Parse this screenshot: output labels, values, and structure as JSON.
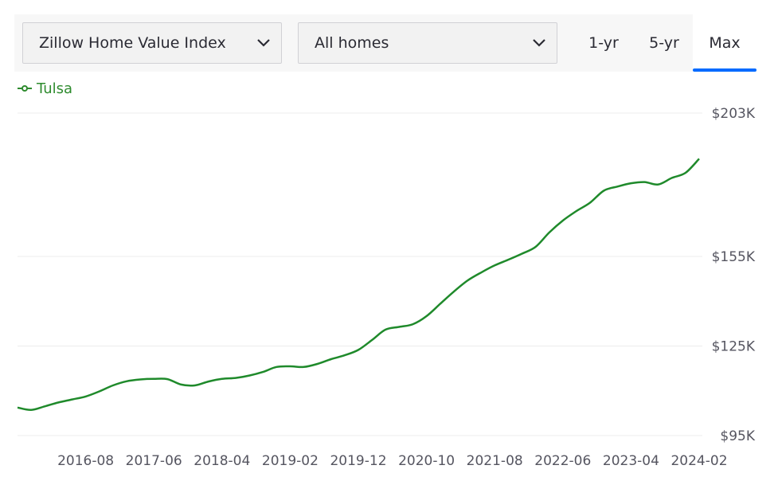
{
  "controls": {
    "metric_select": "Zillow Home Value Index",
    "home_type_select": "All homes",
    "tabs": [
      {
        "label": "1-yr",
        "active": false
      },
      {
        "label": "5-yr",
        "active": false
      },
      {
        "label": "Max",
        "active": true
      }
    ]
  },
  "colors": {
    "series": "#1f8a2b",
    "active_tab": "#006aff",
    "grid": "#ececec"
  },
  "chart_data": {
    "type": "line",
    "title": "",
    "xlabel": "",
    "ylabel": "",
    "legend_position": "top-left",
    "grid": true,
    "ylim": [
      95000,
      203000
    ],
    "y_ticks": [
      95000,
      125000,
      155000,
      203000
    ],
    "y_tick_labels": [
      "$95K",
      "$125K",
      "$155K",
      "$203K"
    ],
    "x_tick_labels": [
      "2016-08",
      "2017-06",
      "2018-04",
      "2019-02",
      "2019-12",
      "2020-10",
      "2021-08",
      "2022-06",
      "2023-04",
      "2024-02"
    ],
    "series": [
      {
        "name": "Tulsa",
        "x": [
          "2015-10",
          "2015-12",
          "2016-02",
          "2016-04",
          "2016-06",
          "2016-08",
          "2016-10",
          "2016-12",
          "2017-02",
          "2017-04",
          "2017-06",
          "2017-08",
          "2017-10",
          "2017-12",
          "2018-02",
          "2018-04",
          "2018-06",
          "2018-08",
          "2018-10",
          "2018-12",
          "2019-02",
          "2019-04",
          "2019-06",
          "2019-08",
          "2019-10",
          "2019-12",
          "2020-02",
          "2020-04",
          "2020-06",
          "2020-08",
          "2020-10",
          "2020-12",
          "2021-02",
          "2021-04",
          "2021-06",
          "2021-08",
          "2021-10",
          "2021-12",
          "2022-02",
          "2022-04",
          "2022-06",
          "2022-08",
          "2022-10",
          "2022-12",
          "2023-02",
          "2023-04",
          "2023-06",
          "2023-08",
          "2023-10",
          "2023-12",
          "2024-02"
        ],
        "y": [
          104400,
          103600,
          104800,
          106100,
          107100,
          108100,
          109800,
          111800,
          113200,
          113800,
          114000,
          113900,
          112100,
          111800,
          113100,
          114000,
          114300,
          115100,
          116300,
          118000,
          118200,
          118000,
          119000,
          120600,
          121900,
          123700,
          127000,
          130500,
          131400,
          132300,
          135000,
          139100,
          143200,
          146900,
          149600,
          152000,
          153900,
          155900,
          158200,
          163000,
          167000,
          170200,
          173000,
          177000,
          178400,
          179500,
          179900,
          179100,
          181300,
          183000,
          187700
        ]
      }
    ]
  }
}
